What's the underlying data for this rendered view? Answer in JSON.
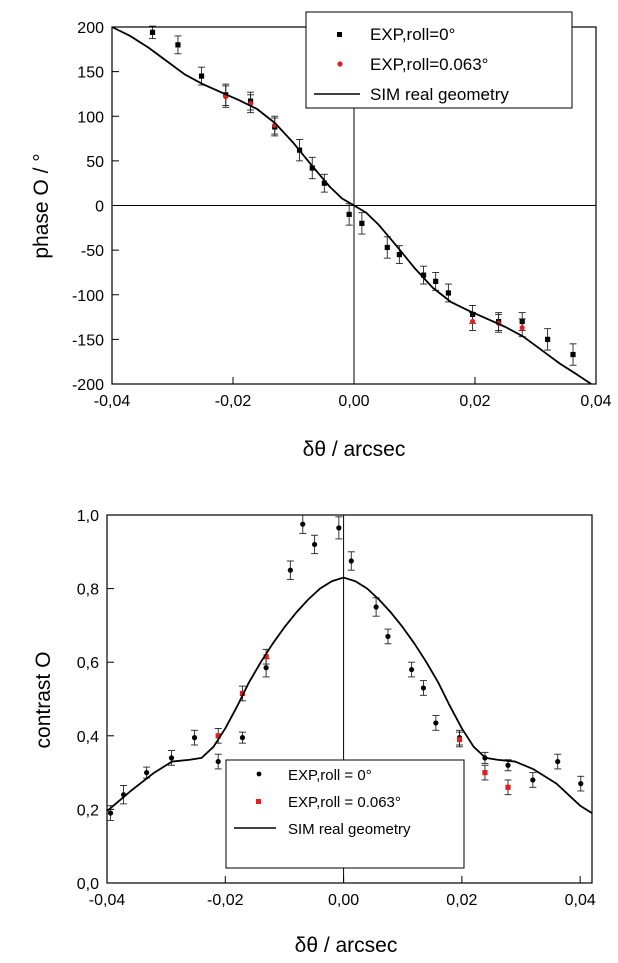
{
  "chart_data": [
    {
      "type": "scatter",
      "xlabel": "δθ / arcsec",
      "ylabel": "phase O / °",
      "xlim": [
        -0.04,
        0.04
      ],
      "ylim": [
        -200,
        200
      ],
      "x_ticks": [
        "-0,04",
        "-0,02",
        "0,00",
        "0,02",
        "0,04"
      ],
      "y_ticks": [
        "200",
        "150",
        "100",
        "50",
        "0",
        "-50",
        "-100",
        "-150",
        "-200"
      ],
      "legend_position": "top-right",
      "series": [
        {
          "name": "EXP,roll=0°",
          "marker": "square",
          "color": "#000000",
          "points": [
            {
              "x": -0.0333,
              "y": 194,
              "err": 7
            },
            {
              "x": -0.0291,
              "y": 180,
              "err": 10
            },
            {
              "x": -0.0252,
              "y": 145,
              "err": 10
            },
            {
              "x": -0.0212,
              "y": 124,
              "err": 12
            },
            {
              "x": -0.0171,
              "y": 117,
              "err": 10
            },
            {
              "x": -0.0131,
              "y": 88,
              "err": 10
            },
            {
              "x": -0.009,
              "y": 62,
              "err": 12
            },
            {
              "x": -0.0069,
              "y": 42,
              "err": 12
            },
            {
              "x": -0.0049,
              "y": 25,
              "err": 10
            },
            {
              "x": -0.0008,
              "y": -10,
              "err": 12
            },
            {
              "x": 0.0013,
              "y": -20,
              "err": 12
            },
            {
              "x": 0.0055,
              "y": -47,
              "err": 12
            },
            {
              "x": 0.0075,
              "y": -55,
              "err": 10
            },
            {
              "x": 0.0115,
              "y": -78,
              "err": 10
            },
            {
              "x": 0.0135,
              "y": -85,
              "err": 10
            },
            {
              "x": 0.0156,
              "y": -98,
              "err": 10
            },
            {
              "x": 0.0196,
              "y": -122,
              "err": 10
            },
            {
              "x": 0.0239,
              "y": -130,
              "err": 10
            },
            {
              "x": 0.0278,
              "y": -130,
              "err": 10
            },
            {
              "x": 0.032,
              "y": -150,
              "err": 12
            },
            {
              "x": 0.0362,
              "y": -167,
              "err": 12
            }
          ]
        },
        {
          "name": "EXP,roll=0.063°",
          "marker": "circle",
          "color": "#e02020",
          "points": [
            {
              "x": -0.0212,
              "y": 122,
              "err": 12
            },
            {
              "x": -0.0171,
              "y": 114,
              "err": 10
            },
            {
              "x": -0.0131,
              "y": 90,
              "err": 10
            },
            {
              "x": 0.0196,
              "y": -130,
              "err": 10
            },
            {
              "x": 0.0239,
              "y": -132,
              "err": 10
            },
            {
              "x": 0.0278,
              "y": -137,
              "err": 10
            }
          ]
        },
        {
          "name": "SIM real geometry",
          "type": "line",
          "color": "#000000",
          "x": [
            -0.04,
            -0.037,
            -0.034,
            -0.031,
            -0.028,
            -0.025,
            -0.022,
            -0.019,
            -0.016,
            -0.013,
            -0.01,
            -0.007,
            -0.004,
            -0.002,
            0.0,
            0.002,
            0.004,
            0.007,
            0.01,
            0.013,
            0.016,
            0.019,
            0.022,
            0.025,
            0.028,
            0.031,
            0.034,
            0.037,
            0.0392
          ],
          "y": [
            200,
            190,
            177,
            162,
            147,
            136,
            127,
            118,
            108,
            92,
            70,
            45,
            21,
            8,
            0,
            -8,
            -21,
            -45,
            -70,
            -92,
            -108,
            -118,
            -127,
            -136,
            -147,
            -162,
            -177,
            -190,
            -200
          ]
        }
      ]
    },
    {
      "type": "scatter",
      "xlabel": "δθ / arcsec",
      "ylabel": "contrast O",
      "xlim": [
        -0.04,
        0.042
      ],
      "ylim": [
        0.0,
        1.0
      ],
      "x_ticks": [
        "-0,04",
        "-0,02",
        "0,00",
        "0,02",
        "0,04"
      ],
      "y_ticks": [
        "1,0",
        "0,8",
        "0,6",
        "0,4",
        "0,2",
        "0,0"
      ],
      "legend_position": "bottom-center",
      "series": [
        {
          "name": "EXP,roll = 0°",
          "marker": "circle",
          "color": "#000000",
          "points": [
            {
              "x": -0.0394,
              "y": 0.19,
              "err": 0.02
            },
            {
              "x": -0.0372,
              "y": 0.24,
              "err": 0.025
            },
            {
              "x": -0.0333,
              "y": 0.3,
              "err": 0.015
            },
            {
              "x": -0.0291,
              "y": 0.34,
              "err": 0.02
            },
            {
              "x": -0.0252,
              "y": 0.395,
              "err": 0.02
            },
            {
              "x": -0.0212,
              "y": 0.33,
              "err": 0.02
            },
            {
              "x": -0.0171,
              "y": 0.395,
              "err": 0.015
            },
            {
              "x": -0.0131,
              "y": 0.585,
              "err": 0.025
            },
            {
              "x": -0.009,
              "y": 0.85,
              "err": 0.025
            },
            {
              "x": -0.0069,
              "y": 0.975,
              "err": 0.025
            },
            {
              "x": -0.0049,
              "y": 0.92,
              "err": 0.025
            },
            {
              "x": -0.0008,
              "y": 0.965,
              "err": 0.03
            },
            {
              "x": 0.0013,
              "y": 0.875,
              "err": 0.025
            },
            {
              "x": 0.0055,
              "y": 0.75,
              "err": 0.025
            },
            {
              "x": 0.0075,
              "y": 0.67,
              "err": 0.02
            },
            {
              "x": 0.0115,
              "y": 0.58,
              "err": 0.02
            },
            {
              "x": 0.0135,
              "y": 0.53,
              "err": 0.02
            },
            {
              "x": 0.0156,
              "y": 0.435,
              "err": 0.02
            },
            {
              "x": 0.0196,
              "y": 0.395,
              "err": 0.02
            },
            {
              "x": 0.0239,
              "y": 0.34,
              "err": 0.015
            },
            {
              "x": 0.0278,
              "y": 0.32,
              "err": 0.015
            },
            {
              "x": 0.032,
              "y": 0.28,
              "err": 0.02
            },
            {
              "x": 0.0362,
              "y": 0.33,
              "err": 0.02
            },
            {
              "x": 0.0401,
              "y": 0.27,
              "err": 0.02
            }
          ]
        },
        {
          "name": "EXP,roll = 0.063°",
          "marker": "square",
          "color": "#e02020",
          "points": [
            {
              "x": -0.0212,
              "y": 0.4,
              "err": 0.02
            },
            {
              "x": -0.0171,
              "y": 0.515,
              "err": 0.02
            },
            {
              "x": -0.0131,
              "y": 0.615,
              "err": 0.02
            },
            {
              "x": 0.0196,
              "y": 0.39,
              "err": 0.02
            },
            {
              "x": 0.0239,
              "y": 0.3,
              "err": 0.02
            },
            {
              "x": 0.0278,
              "y": 0.26,
              "err": 0.02
            }
          ]
        },
        {
          "name": "SIM real geometry",
          "type": "line",
          "color": "#000000",
          "x": [
            -0.04,
            -0.036,
            -0.032,
            -0.029,
            -0.026,
            -0.024,
            -0.022,
            -0.02,
            -0.018,
            -0.016,
            -0.014,
            -0.012,
            -0.01,
            -0.008,
            -0.006,
            -0.004,
            -0.002,
            0.0,
            0.002,
            0.004,
            0.006,
            0.008,
            0.01,
            0.012,
            0.014,
            0.016,
            0.018,
            0.02,
            0.022,
            0.024,
            0.026,
            0.029,
            0.032,
            0.036,
            0.04,
            0.042
          ],
          "y": [
            0.195,
            0.25,
            0.3,
            0.33,
            0.335,
            0.34,
            0.37,
            0.42,
            0.48,
            0.545,
            0.6,
            0.65,
            0.695,
            0.735,
            0.77,
            0.8,
            0.82,
            0.83,
            0.82,
            0.8,
            0.77,
            0.735,
            0.695,
            0.65,
            0.6,
            0.545,
            0.48,
            0.42,
            0.37,
            0.34,
            0.335,
            0.33,
            0.31,
            0.27,
            0.21,
            0.19
          ]
        }
      ]
    }
  ]
}
